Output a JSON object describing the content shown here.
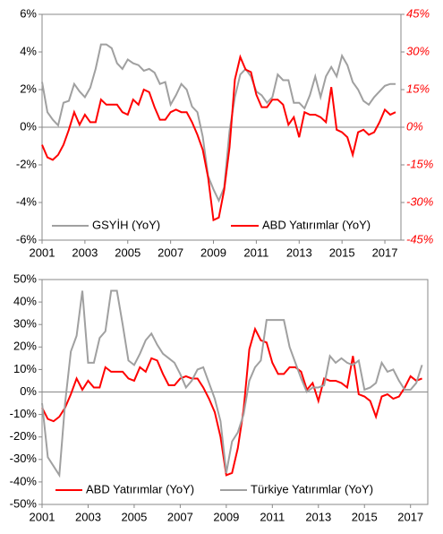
{
  "chart_data": [
    {
      "type": "line",
      "x": [
        2001,
        2001.25,
        2001.5,
        2001.75,
        2002,
        2002.25,
        2002.5,
        2002.75,
        2003,
        2003.25,
        2003.5,
        2003.75,
        2004,
        2004.25,
        2004.5,
        2004.75,
        2005,
        2005.25,
        2005.5,
        2005.75,
        2006,
        2006.25,
        2006.5,
        2006.75,
        2007,
        2007.25,
        2007.5,
        2007.75,
        2008,
        2008.25,
        2008.5,
        2008.75,
        2009,
        2009.25,
        2009.5,
        2009.75,
        2010,
        2010.25,
        2010.5,
        2010.75,
        2011,
        2011.25,
        2011.5,
        2011.75,
        2012,
        2012.25,
        2012.5,
        2012.75,
        2013,
        2013.25,
        2013.5,
        2013.75,
        2014,
        2014.25,
        2014.5,
        2014.75,
        2015,
        2015.25,
        2015.5,
        2015.75,
        2016,
        2016.25,
        2016.5,
        2016.75,
        2017,
        2017.25,
        2017.5
      ],
      "series": [
        {
          "name": "GSYİH (YoY)",
          "color": "#a0a0a0",
          "values": [
            2.4,
            0.8,
            0.4,
            0.1,
            1.3,
            1.4,
            2.3,
            1.9,
            1.6,
            2.1,
            3.1,
            4.4,
            4.4,
            4.2,
            3.4,
            3.1,
            3.6,
            3.4,
            3.3,
            3.0,
            3.1,
            2.9,
            2.3,
            2.4,
            1.2,
            1.7,
            2.3,
            2.0,
            1.1,
            0.8,
            -0.5,
            -2.6,
            -3.3,
            -3.9,
            -3.2,
            -0.2,
            1.6,
            2.8,
            3.1,
            2.7,
            1.9,
            1.7,
            1.3,
            1.6,
            2.8,
            2.5,
            2.5,
            1.3,
            1.3,
            1.0,
            1.7,
            2.7,
            1.6,
            2.7,
            3.2,
            2.7,
            3.8,
            3.3,
            2.4,
            2.0,
            1.4,
            1.2,
            1.6,
            1.9,
            2.2,
            2.3,
            2.3
          ]
        },
        {
          "name": "ABD Yatırımlar (YoY)",
          "color": "#ff0000",
          "axis": "y2",
          "values": [
            -7,
            -12,
            -13,
            -11,
            -7,
            -1,
            6,
            1,
            5,
            2,
            2,
            11,
            9,
            9,
            9,
            6,
            5,
            11,
            9,
            15,
            14,
            8,
            3,
            3,
            6,
            7,
            6,
            6,
            2,
            -3,
            -9,
            -20,
            -37,
            -36,
            -25,
            -8,
            19,
            28,
            23,
            22,
            13,
            8,
            8,
            11,
            11,
            9,
            1,
            4,
            -4,
            6,
            5,
            5,
            4,
            2,
            16,
            -1,
            -2,
            -4,
            -11,
            -2,
            -1,
            -3,
            -2,
            2,
            7,
            5,
            6
          ]
        }
      ],
      "xlim": [
        2001,
        2017.75
      ],
      "xticks": [
        2001,
        2003,
        2005,
        2007,
        2009,
        2011,
        2013,
        2015,
        2017
      ],
      "ylim": [
        -6,
        6
      ],
      "yticks": [
        {
          "value": -6,
          "label": "-6%"
        },
        {
          "value": -4,
          "label": "-4%"
        },
        {
          "value": -2,
          "label": "-2%"
        },
        {
          "value": 0,
          "label": "0%"
        },
        {
          "value": 2,
          "label": "2%"
        },
        {
          "value": 4,
          "label": "4%"
        },
        {
          "value": 6,
          "label": "6%"
        }
      ],
      "y2lim": [
        -45,
        45
      ],
      "y2ticks": [
        {
          "value": -45,
          "label": "-45%"
        },
        {
          "value": -30,
          "label": "-30%"
        },
        {
          "value": -15,
          "label": "-15%"
        },
        {
          "value": 0,
          "label": "0%"
        },
        {
          "value": 15,
          "label": "15%"
        },
        {
          "value": 30,
          "label": "30%"
        },
        {
          "value": 45,
          "label": "45%"
        }
      ],
      "y2color": "#ff0000",
      "legend": "bottom"
    },
    {
      "type": "line",
      "x": [
        2001,
        2001.25,
        2001.5,
        2001.75,
        2002,
        2002.25,
        2002.5,
        2002.75,
        2003,
        2003.25,
        2003.5,
        2003.75,
        2004,
        2004.25,
        2004.5,
        2004.75,
        2005,
        2005.25,
        2005.5,
        2005.75,
        2006,
        2006.25,
        2006.5,
        2006.75,
        2007,
        2007.25,
        2007.5,
        2007.75,
        2008,
        2008.25,
        2008.5,
        2008.75,
        2009,
        2009.25,
        2009.5,
        2009.75,
        2010,
        2010.25,
        2010.5,
        2010.75,
        2011,
        2011.25,
        2011.5,
        2011.75,
        2012,
        2012.25,
        2012.5,
        2012.75,
        2013,
        2013.25,
        2013.5,
        2013.75,
        2014,
        2014.25,
        2014.5,
        2014.75,
        2015,
        2015.25,
        2015.5,
        2015.75,
        2016,
        2016.25,
        2016.5,
        2016.75,
        2017,
        2017.25,
        2017.5
      ],
      "series": [
        {
          "name": "ABD Yatırımlar (YoY)",
          "color": "#ff0000",
          "values": [
            -7,
            -12,
            -13,
            -11,
            -7,
            -1,
            6,
            1,
            5,
            2,
            2,
            11,
            9,
            9,
            9,
            6,
            5,
            11,
            9,
            15,
            14,
            8,
            3,
            3,
            6,
            7,
            6,
            6,
            2,
            -3,
            -9,
            -20,
            -37,
            -36,
            -25,
            -8,
            19,
            28,
            23,
            22,
            13,
            8,
            8,
            11,
            11,
            9,
            1,
            4,
            -4,
            6,
            5,
            5,
            4,
            2,
            16,
            -1,
            -2,
            -4,
            -11,
            -2,
            -1,
            -3,
            -2,
            2,
            7,
            5,
            6
          ]
        },
        {
          "name": "Türkiye Yatırımlar (YoY)",
          "color": "#a0a0a0",
          "values": [
            -5,
            -29,
            -33,
            -37,
            -5,
            18,
            25,
            45,
            13,
            13,
            24,
            27,
            45,
            45,
            30,
            14,
            12,
            17,
            23,
            26,
            21,
            17,
            15,
            13,
            8,
            2,
            5,
            10,
            11,
            4,
            -3,
            -13,
            -36,
            -22,
            -18,
            -10,
            5,
            11,
            14,
            32,
            32,
            32,
            32,
            20,
            13,
            6,
            0,
            2,
            2,
            3,
            16,
            13,
            15,
            13,
            12,
            14,
            1,
            2,
            4,
            13,
            9,
            10,
            5,
            1,
            1,
            4,
            12
          ]
        }
      ],
      "xlim": [
        2001,
        2017.75
      ],
      "xticks": [
        2001,
        2003,
        2005,
        2007,
        2009,
        2011,
        2013,
        2015,
        2017
      ],
      "ylim": [
        -50,
        50
      ],
      "yticks": [
        {
          "value": -50,
          "label": "-50%"
        },
        {
          "value": -40,
          "label": "-40%"
        },
        {
          "value": -30,
          "label": "-30%"
        },
        {
          "value": -20,
          "label": "-20%"
        },
        {
          "value": -10,
          "label": "-10%"
        },
        {
          "value": 0,
          "label": "0%"
        },
        {
          "value": 10,
          "label": "10%"
        },
        {
          "value": 20,
          "label": "20%"
        },
        {
          "value": 30,
          "label": "30%"
        },
        {
          "value": 40,
          "label": "40%"
        },
        {
          "value": 50,
          "label": "50%"
        }
      ],
      "legend": "bottom"
    }
  ]
}
